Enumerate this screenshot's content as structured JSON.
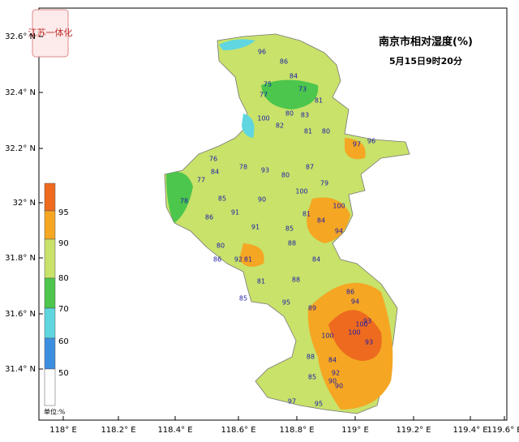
{
  "logo": "江苏一体化",
  "title": "南京市相对湿度(%)",
  "subtitle": "5月15日9时20分",
  "lat_labels": [
    "32.6° N",
    "32.4° N",
    "32.2° N",
    "32° N",
    "31.8° N",
    "31.6° N",
    "31.4° N"
  ],
  "lon_labels": [
    "118° E",
    "118.2° E",
    "118.4° E",
    "118.6° E",
    "118.8° E",
    "119° E",
    "119.2° E",
    "119.4° E",
    "119.6° E"
  ],
  "legend": {
    "ticks": [
      "95",
      "90",
      "80",
      "70",
      "60",
      "50"
    ],
    "unit": "单位:%"
  },
  "stations": [
    "96",
    "86",
    "75",
    "84",
    "73",
    "77",
    "81",
    "100",
    "80",
    "83",
    "82",
    "81",
    "80",
    "97",
    "96",
    "76",
    "84",
    "78",
    "93",
    "87",
    "80",
    "77",
    "78",
    "85",
    "90",
    "100",
    "79",
    "91",
    "100",
    "86",
    "81",
    "91",
    "84",
    "85",
    "94",
    "80",
    "81",
    "88",
    "92",
    "84",
    "86",
    "81",
    "88",
    "85",
    "95",
    "89",
    "100",
    "100",
    "93",
    "86",
    "94",
    "88",
    "84",
    "92",
    "90",
    "85",
    "97",
    "95",
    "90",
    "93",
    "100"
  ]
}
